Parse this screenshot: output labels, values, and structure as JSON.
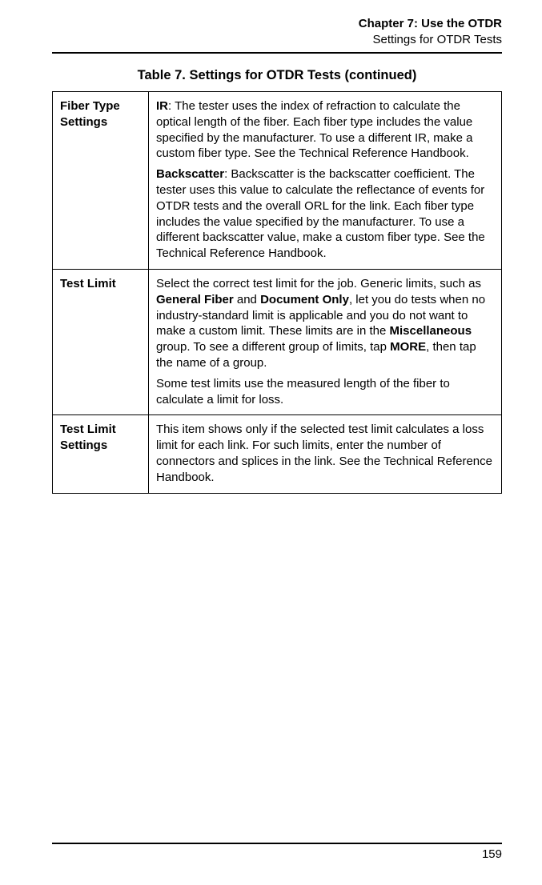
{
  "header": {
    "chapter": "Chapter 7: Use the OTDR",
    "section": "Settings for OTDR Tests"
  },
  "table": {
    "title": "Table 7. Settings for OTDR Tests (continued)",
    "rows": [
      {
        "label": "Fiber Type Settings",
        "para1_lead": "IR",
        "para1_rest": ": The tester uses the index of refraction to calculate the optical length of the fiber. Each fiber type includes the value specified by the manufacturer. To use a different IR, make a custom fiber type. See the Technical Reference Handbook.",
        "para2_lead": "Backscatter",
        "para2_rest": ": Backscatter is the backscatter coefficient. The tester uses this value to calculate the reflectance of events for OTDR tests and the overall ORL for the link. Each fiber type includes the value specified by the manufacturer. To use a different backscatter value, make a custom fiber type. See the Technical Reference Handbook."
      },
      {
        "label": "Test Limit",
        "p1_a": "Select the correct test limit for the job. Generic limits, such as ",
        "p1_b1": "General Fiber",
        "p1_c": " and ",
        "p1_b2": "Document Only",
        "p1_d": ", let you do tests when no industry-standard limit is applicable and you do not want to make a custom limit. These limits are in the ",
        "p1_b3": "Miscellaneous",
        "p1_e": " group. To see a different group of limits, tap ",
        "p1_b4": "MORE",
        "p1_f": ", then tap the name of a group.",
        "p2": "Some test limits use the measured length of the fiber to calculate a limit for loss."
      },
      {
        "label": "Test Limit Settings",
        "p1": "This item shows only if the selected test limit calculates a loss limit for each link. For such limits, enter the number of connectors and splices in the link. See the Technical Reference Handbook."
      }
    ]
  },
  "footer": {
    "page_number": "159"
  }
}
